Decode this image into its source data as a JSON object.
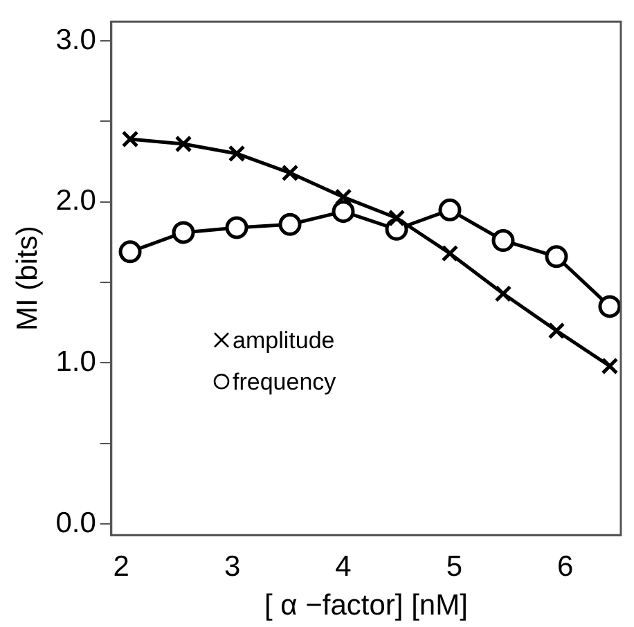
{
  "chart_data": {
    "type": "line",
    "xlabel": "[ α −factor] [nM]",
    "ylabel": "MI (bits)",
    "xlim": [
      1.91,
      6.5
    ],
    "ylim": [
      -0.07,
      3.12
    ],
    "xticks": [
      2,
      3,
      4,
      5,
      6
    ],
    "yticks": [
      {
        "value": 0,
        "label": "0.0"
      },
      {
        "value": 0.5,
        "label": null
      },
      {
        "value": 1,
        "label": "1.0"
      },
      {
        "value": 1.5,
        "label": null
      },
      {
        "value": 2,
        "label": "2.0"
      },
      {
        "value": 2.5,
        "label": null
      },
      {
        "value": 3,
        "label": "3.0"
      }
    ],
    "legend": "left",
    "grid": false,
    "x": [
      2.08,
      2.56,
      3.04,
      3.52,
      4.0,
      4.48,
      4.96,
      5.44,
      5.92,
      6.4
    ],
    "series": [
      {
        "name": "amplitude",
        "color": "#000000",
        "marker": "cross",
        "values": [
          2.39,
          2.36,
          2.3,
          2.18,
          2.03,
          1.9,
          1.68,
          1.43,
          1.2,
          0.98
        ]
      },
      {
        "name": "frequency",
        "color": "#000000",
        "marker": "circle",
        "values": [
          1.69,
          1.81,
          1.84,
          1.86,
          1.94,
          1.83,
          1.95,
          1.76,
          1.66,
          1.35
        ]
      }
    ]
  }
}
